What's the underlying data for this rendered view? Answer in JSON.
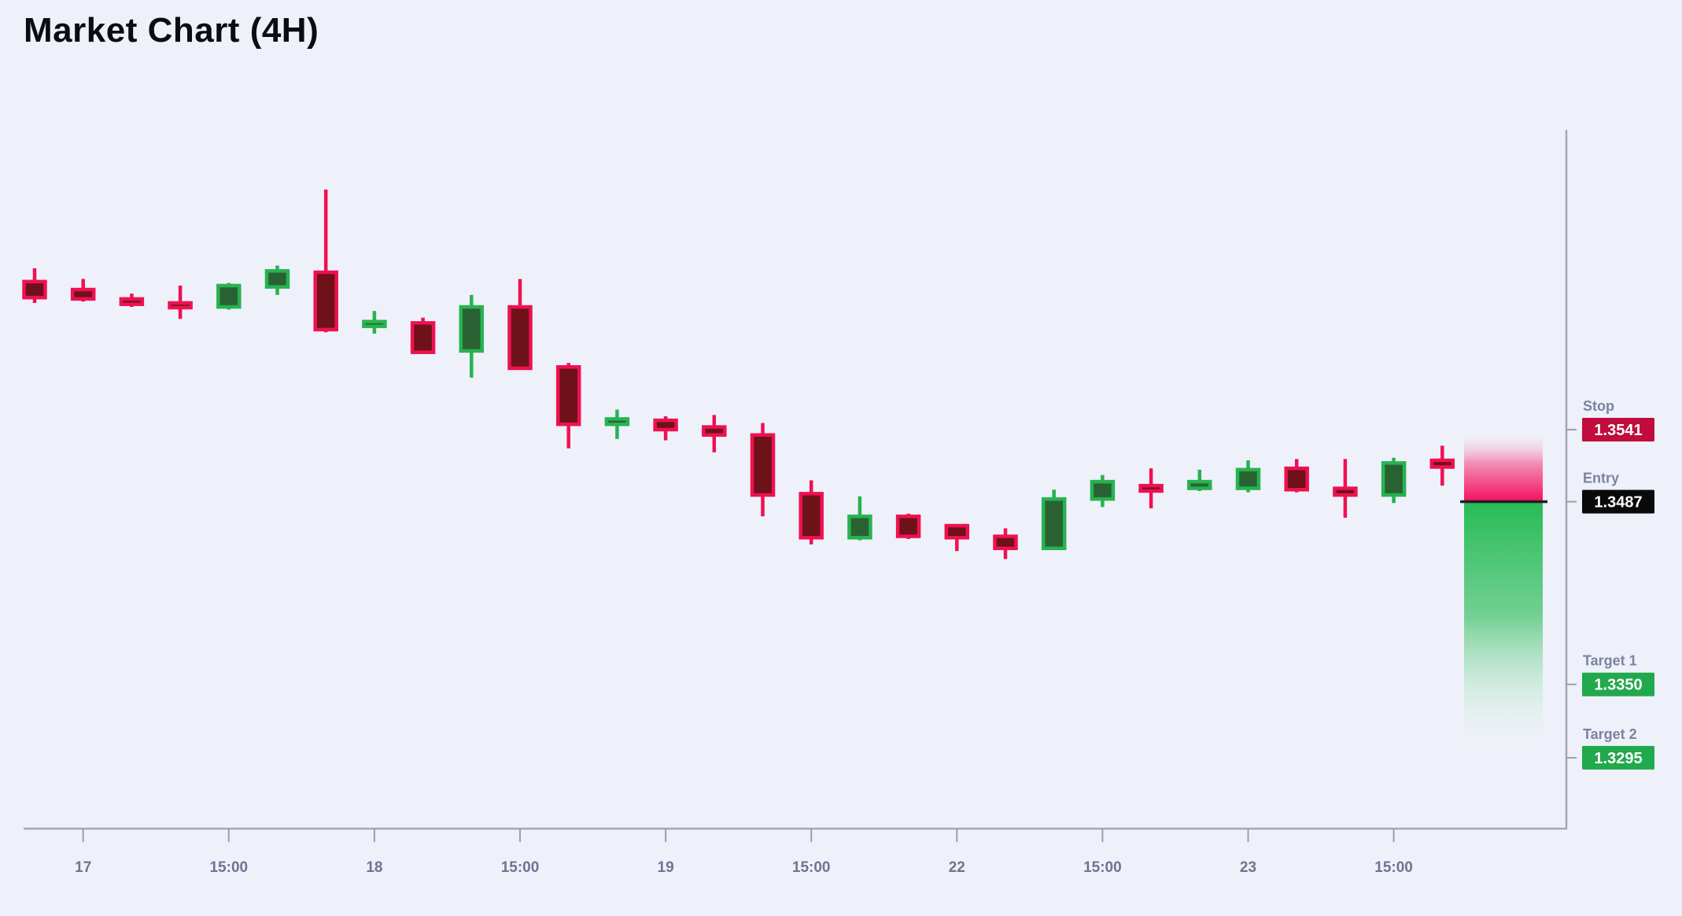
{
  "title": "Market Chart (4H)",
  "colors": {
    "background": "#eef1f9",
    "bear_border": "#ee1152",
    "bear_fill": "#6f1119",
    "bull_border": "#27b350",
    "bull_fill": "#2a6132",
    "stop_box": "#c00d3d",
    "entry_box": "#0a0a0c",
    "target_box": "#21a94d",
    "zone_pink": "#f60f5e",
    "zone_green": "#28bc56",
    "axis": "#a3a8b5",
    "label_text": "#7c82a0"
  },
  "chart_data": {
    "type": "candlestick",
    "title": "Market Chart (4H)",
    "timeframe": "4H",
    "grid": "off",
    "x_tick_labels": [
      "17",
      "15:00",
      "18",
      "15:00",
      "19",
      "15:00",
      "22",
      "15:00",
      "23",
      "15:00"
    ],
    "x_ticks_every_n_candles": 3,
    "x_first_tick_candle_index": 1,
    "price_range_visible": [
      1.327,
      1.374
    ],
    "levels": {
      "stop": 1.3541,
      "entry": 1.3487,
      "target1": 1.335,
      "target2": 1.3295
    },
    "candles": [
      {
        "o": 1.3652,
        "h": 1.3662,
        "l": 1.3636,
        "c": 1.364
      },
      {
        "o": 1.3646,
        "h": 1.3654,
        "l": 1.3637,
        "c": 1.3639
      },
      {
        "o": 1.3639,
        "h": 1.3643,
        "l": 1.3633,
        "c": 1.3635
      },
      {
        "o": 1.3636,
        "h": 1.3649,
        "l": 1.3624,
        "c": 1.3633
      },
      {
        "o": 1.3633,
        "h": 1.3651,
        "l": 1.3631,
        "c": 1.3649
      },
      {
        "o": 1.3648,
        "h": 1.3664,
        "l": 1.3642,
        "c": 1.366
      },
      {
        "o": 1.3659,
        "h": 1.3721,
        "l": 1.3614,
        "c": 1.3616
      },
      {
        "o": 1.3619,
        "h": 1.363,
        "l": 1.3613,
        "c": 1.3622
      },
      {
        "o": 1.3621,
        "h": 1.3625,
        "l": 1.3598,
        "c": 1.3599
      },
      {
        "o": 1.36,
        "h": 1.3642,
        "l": 1.358,
        "c": 1.3633
      },
      {
        "o": 1.3633,
        "h": 1.3654,
        "l": 1.3586,
        "c": 1.3587
      },
      {
        "o": 1.3588,
        "h": 1.3591,
        "l": 1.3527,
        "c": 1.3545
      },
      {
        "o": 1.3545,
        "h": 1.3556,
        "l": 1.3534,
        "c": 1.3549
      },
      {
        "o": 1.3548,
        "h": 1.3551,
        "l": 1.3533,
        "c": 1.3541
      },
      {
        "o": 1.3543,
        "h": 1.3552,
        "l": 1.3524,
        "c": 1.3537
      },
      {
        "o": 1.3537,
        "h": 1.3546,
        "l": 1.3476,
        "c": 1.3492
      },
      {
        "o": 1.3493,
        "h": 1.3503,
        "l": 1.3455,
        "c": 1.346
      },
      {
        "o": 1.346,
        "h": 1.3491,
        "l": 1.3458,
        "c": 1.3476
      },
      {
        "o": 1.3476,
        "h": 1.3478,
        "l": 1.3459,
        "c": 1.3461
      },
      {
        "o": 1.3469,
        "h": 1.347,
        "l": 1.345,
        "c": 1.346
      },
      {
        "o": 1.3461,
        "h": 1.3467,
        "l": 1.3444,
        "c": 1.3452
      },
      {
        "o": 1.3452,
        "h": 1.3496,
        "l": 1.3451,
        "c": 1.3489
      },
      {
        "o": 1.3489,
        "h": 1.3507,
        "l": 1.3483,
        "c": 1.3502
      },
      {
        "o": 1.3499,
        "h": 1.3512,
        "l": 1.3482,
        "c": 1.3495
      },
      {
        "o": 1.3497,
        "h": 1.3511,
        "l": 1.3495,
        "c": 1.3502
      },
      {
        "o": 1.3497,
        "h": 1.3518,
        "l": 1.3494,
        "c": 1.3511
      },
      {
        "o": 1.3512,
        "h": 1.3519,
        "l": 1.3494,
        "c": 1.3496
      },
      {
        "o": 1.3497,
        "h": 1.3519,
        "l": 1.3475,
        "c": 1.3492
      },
      {
        "o": 1.3492,
        "h": 1.352,
        "l": 1.3486,
        "c": 1.3516
      },
      {
        "o": 1.3518,
        "h": 1.3529,
        "l": 1.3499,
        "c": 1.3513
      }
    ]
  },
  "side_panel": {
    "labels": [
      {
        "name": "Stop",
        "value": "1.3541",
        "level": "stop",
        "box_color": "#c00d3d"
      },
      {
        "name": "Entry",
        "value": "1.3487",
        "level": "entry",
        "box_color": "#0a0a0c"
      },
      {
        "name": "Target 1",
        "value": "1.3350",
        "level": "target1",
        "box_color": "#21a94d"
      },
      {
        "name": "Target 2",
        "value": "1.3295",
        "level": "target2",
        "box_color": "#21a94d"
      }
    ]
  }
}
